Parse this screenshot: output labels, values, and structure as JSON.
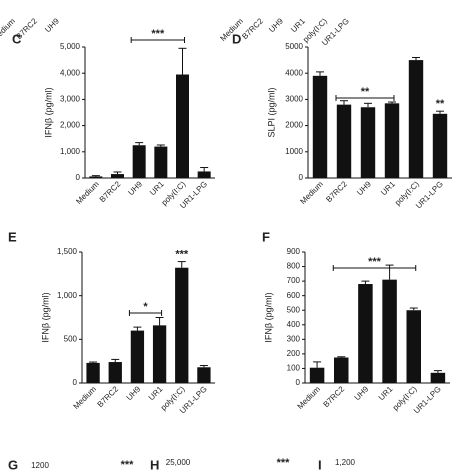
{
  "chart_data": [
    {
      "type": "bar",
      "panel": "C",
      "ylabel": "IFNβ (pg/ml)",
      "color": "#111111",
      "categories": [
        "Medium",
        "B7RC2",
        "UH9",
        "UR1",
        "poly(I:C)",
        "UR1-LPG"
      ],
      "values": [
        60,
        150,
        1250,
        1200,
        3950,
        250
      ],
      "errors": [
        30,
        80,
        100,
        60,
        1000,
        150
      ],
      "ylim": [
        0,
        5000
      ],
      "yticks": [
        0,
        {
          "value": 1000,
          "label": "1,000"
        },
        {
          "value": 2000,
          "label": "2,000"
        },
        {
          "value": 3000,
          "label": "3,000"
        },
        {
          "value": 4000,
          "label": "4,000"
        },
        {
          "value": 5000,
          "label": "5,000"
        }
      ],
      "annotations": [
        "***"
      ]
    },
    {
      "type": "bar",
      "panel": "D",
      "ylabel": "SLPI (pg/ml)",
      "color": "#111111",
      "categories": [
        "Medium",
        "B7RC2",
        "UH9",
        "UR1",
        "poly(I:C)",
        "UR1-LPG"
      ],
      "values": [
        3900,
        2800,
        2700,
        2850,
        4500,
        2450
      ],
      "errors": [
        150,
        150,
        150,
        50,
        100,
        100
      ],
      "ylim": [
        0,
        5000
      ],
      "yticks": [
        0,
        1000,
        2000,
        3000,
        4000,
        5000
      ],
      "annotations": [
        "**",
        "**"
      ]
    },
    {
      "type": "bar",
      "panel": "E",
      "ylabel": "IFNβ (pg/ml)",
      "color": "#111111",
      "categories": [
        "Medium",
        "B7RC2",
        "UH9",
        "UR1",
        "poly(I:C)",
        "UR1-LPG"
      ],
      "values": [
        230,
        240,
        600,
        660,
        1320,
        180
      ],
      "errors": [
        10,
        30,
        40,
        90,
        70,
        20
      ],
      "ylim": [
        0,
        1500
      ],
      "yticks": [
        0,
        500,
        {
          "value": 1000,
          "label": "1,000"
        },
        {
          "value": 1500,
          "label": "1,500"
        }
      ],
      "annotations": [
        "*",
        "***"
      ]
    },
    {
      "type": "bar",
      "panel": "F",
      "ylabel": "IFNβ (pg/ml)",
      "color": "#111111",
      "categories": [
        "Medium",
        "B7RC2",
        "UH9",
        "UR1",
        "poly(I:C)",
        "UR1-LPG"
      ],
      "values": [
        105,
        175,
        680,
        710,
        500,
        70
      ],
      "errors": [
        40,
        5,
        20,
        100,
        15,
        15
      ],
      "ylim": [
        0,
        900
      ],
      "yticks": [
        0,
        100,
        200,
        300,
        400,
        500,
        600,
        700,
        800,
        900
      ],
      "annotations": [
        "***"
      ]
    }
  ],
  "top_fragments": [
    [
      "Medium",
      "B7RC2",
      "UH9"
    ],
    [
      "Medium",
      "B7RC2",
      "UH9",
      "UR1",
      "poly(I:C)",
      "UR1-LPG"
    ]
  ],
  "bottom_fragments": [
    {
      "panel": "G",
      "texts": [
        "1200",
        "***"
      ]
    },
    {
      "panel": "H",
      "texts": [
        "25,000",
        "***"
      ]
    },
    {
      "panel": "I",
      "texts": [
        "1,200"
      ]
    }
  ]
}
